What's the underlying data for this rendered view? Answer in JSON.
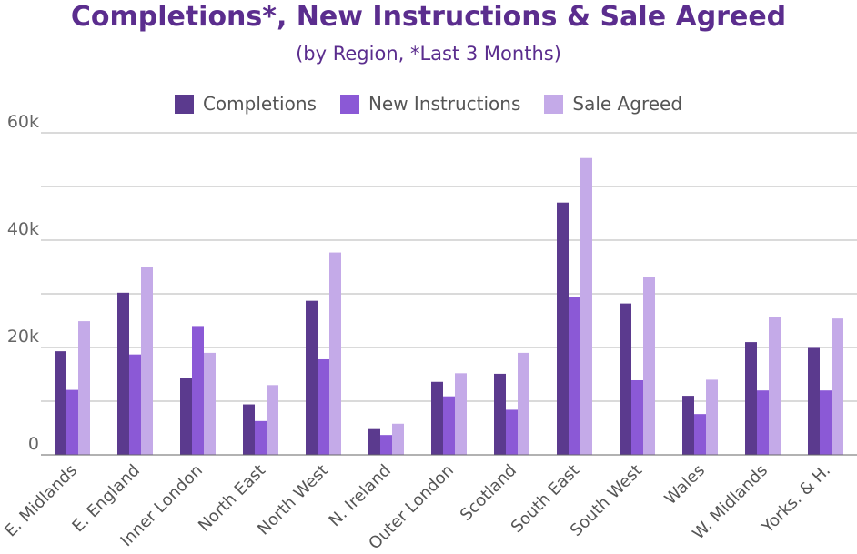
{
  "chart_data": {
    "type": "bar",
    "title": "Completions*, New Instructions & Sale Agreed",
    "subtitle": "(by Region, *Last 3 Months)",
    "categories": [
      "E. Midlands",
      "E. England",
      "Inner London",
      "North East",
      "North West",
      "N. Ireland",
      "Outer London",
      "Scotland",
      "South East",
      "South West",
      "Wales",
      "W. Midlands",
      "Yorks. & H."
    ],
    "series": [
      {
        "name": "Completions",
        "color": "#5b3a8e",
        "values": [
          19300,
          30200,
          14400,
          9400,
          28700,
          4800,
          13600,
          15100,
          47000,
          28200,
          11000,
          21000,
          20100
        ]
      },
      {
        "name": "New Instructions",
        "color": "#8b59d6",
        "values": [
          12100,
          18700,
          24000,
          6300,
          17800,
          3700,
          10900,
          8400,
          29400,
          13900,
          7600,
          12000,
          12000
        ]
      },
      {
        "name": "Sale Agreed",
        "color": "#c4aae8",
        "values": [
          24900,
          35000,
          19000,
          13000,
          37700,
          5800,
          15200,
          19000,
          55300,
          33200,
          14000,
          25700,
          25400
        ]
      }
    ],
    "y_ticks": [
      "0",
      "20k",
      "40k",
      "60k"
    ],
    "ylim": [
      0,
      60000
    ],
    "grid": true,
    "legend": "top-center"
  }
}
